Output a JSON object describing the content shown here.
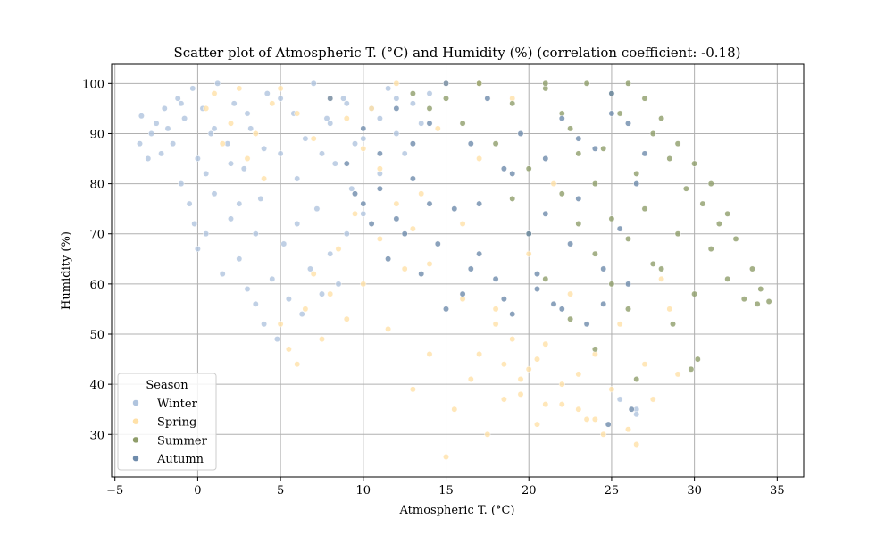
{
  "chart_data": {
    "type": "scatter",
    "title": "Scatter plot of Atmospheric T. (°C) and Humidity (%) (correlation coefficient: -0.18)",
    "xlabel": "Atmospheric T. (°C)",
    "ylabel": "Humidity (%)",
    "xlim": [
      -5.2,
      36.6
    ],
    "ylim": [
      21.5,
      103.8
    ],
    "xticks": [
      -5,
      0,
      5,
      10,
      15,
      20,
      25,
      30,
      35
    ],
    "xtick_labels": [
      "−5",
      "0",
      "5",
      "10",
      "15",
      "20",
      "25",
      "30",
      "35"
    ],
    "yticks": [
      30,
      40,
      50,
      60,
      70,
      80,
      90,
      100
    ],
    "ytick_labels": [
      "30",
      "40",
      "50",
      "60",
      "70",
      "80",
      "90",
      "100"
    ],
    "grid": true,
    "legend": {
      "title": "Season",
      "placement": "lower-left",
      "entries": [
        "Winter",
        "Spring",
        "Summer",
        "Autumn"
      ]
    },
    "series": [
      {
        "name": "Winter",
        "color": "#b0c4de",
        "points": [
          [
            -3.5,
            88
          ],
          [
            -3.4,
            93.5
          ],
          [
            -3.0,
            85
          ],
          [
            -2.8,
            90
          ],
          [
            -2.5,
            92
          ],
          [
            -2.2,
            86
          ],
          [
            -2.0,
            95
          ],
          [
            -1.8,
            91
          ],
          [
            -1.5,
            88
          ],
          [
            -1.2,
            97
          ],
          [
            -1.0,
            80
          ],
          [
            -0.8,
            93
          ],
          [
            -0.5,
            76
          ],
          [
            -0.3,
            99
          ],
          [
            -0.2,
            72
          ],
          [
            0.0,
            85
          ],
          [
            0.0,
            67
          ],
          [
            0.3,
            95
          ],
          [
            0.5,
            70
          ],
          [
            0.8,
            90
          ],
          [
            1.0,
            78
          ],
          [
            1.2,
            100
          ],
          [
            1.5,
            62
          ],
          [
            1.8,
            88
          ],
          [
            2.0,
            73
          ],
          [
            2.2,
            96
          ],
          [
            2.5,
            65
          ],
          [
            2.8,
            83
          ],
          [
            3.0,
            59
          ],
          [
            3.2,
            91
          ],
          [
            3.5,
            56
          ],
          [
            3.8,
            77
          ],
          [
            4.0,
            52
          ],
          [
            4.2,
            98
          ],
          [
            4.5,
            61
          ],
          [
            4.8,
            49
          ],
          [
            5.0,
            86
          ],
          [
            5.2,
            68
          ],
          [
            5.5,
            57
          ],
          [
            5.8,
            94
          ],
          [
            6.0,
            72
          ],
          [
            6.3,
            54
          ],
          [
            6.5,
            89
          ],
          [
            6.8,
            63
          ],
          [
            7.0,
            100
          ],
          [
            7.2,
            75
          ],
          [
            7.5,
            58
          ],
          [
            7.8,
            93
          ],
          [
            8.0,
            66
          ],
          [
            8.3,
            84
          ],
          [
            8.5,
            60
          ],
          [
            8.8,
            97
          ],
          [
            9.0,
            70
          ],
          [
            9.3,
            79
          ],
          [
            9.5,
            88
          ],
          [
            10.0,
            74
          ],
          [
            10.5,
            95
          ],
          [
            11.0,
            82
          ],
          [
            11.5,
            99
          ],
          [
            12.0,
            90
          ],
          [
            12.5,
            86
          ],
          [
            13.0,
            96
          ],
          [
            13.5,
            92
          ],
          [
            14.0,
            98
          ],
          [
            2.0,
            84
          ],
          [
            1.0,
            91
          ],
          [
            0.5,
            82
          ],
          [
            -1.0,
            96
          ],
          [
            3.0,
            94
          ],
          [
            4.0,
            87
          ],
          [
            5.0,
            97
          ],
          [
            6.0,
            81
          ],
          [
            3.5,
            70
          ],
          [
            2.5,
            76
          ],
          [
            26.5,
            35
          ],
          [
            26.5,
            34
          ],
          [
            25.5,
            37
          ],
          [
            7.5,
            86
          ],
          [
            8.0,
            92
          ],
          [
            9.0,
            96
          ],
          [
            10.0,
            89
          ],
          [
            11.0,
            93
          ],
          [
            12.0,
            97
          ]
        ]
      },
      {
        "name": "Spring",
        "color": "#ffe1a8",
        "points": [
          [
            0.5,
            95
          ],
          [
            1.0,
            98
          ],
          [
            1.5,
            88
          ],
          [
            2.0,
            92
          ],
          [
            2.5,
            99
          ],
          [
            3.0,
            85
          ],
          [
            3.5,
            90
          ],
          [
            4.0,
            81
          ],
          [
            4.5,
            96
          ],
          [
            5.0,
            52
          ],
          [
            5.5,
            47
          ],
          [
            6.0,
            44
          ],
          [
            6.5,
            55
          ],
          [
            7.0,
            62
          ],
          [
            7.5,
            49
          ],
          [
            8.0,
            58
          ],
          [
            8.5,
            67
          ],
          [
            9.0,
            53
          ],
          [
            9.5,
            74
          ],
          [
            10.0,
            60
          ],
          [
            10.5,
            95
          ],
          [
            11.0,
            69
          ],
          [
            11.5,
            51
          ],
          [
            12.0,
            100
          ],
          [
            12.5,
            63
          ],
          [
            13.0,
            39
          ],
          [
            13.5,
            78
          ],
          [
            14.0,
            46
          ],
          [
            14.5,
            91
          ],
          [
            15.0,
            25.5
          ],
          [
            15.5,
            35
          ],
          [
            16.0,
            72
          ],
          [
            16.5,
            41
          ],
          [
            17.0,
            85
          ],
          [
            17.5,
            30
          ],
          [
            18.0,
            55
          ],
          [
            18.5,
            44
          ],
          [
            19.0,
            97
          ],
          [
            19.5,
            38
          ],
          [
            20.0,
            66
          ],
          [
            20.5,
            32
          ],
          [
            21.0,
            48
          ],
          [
            21.5,
            80
          ],
          [
            22.0,
            36
          ],
          [
            22.5,
            58
          ],
          [
            23.0,
            42
          ],
          [
            23.5,
            33
          ],
          [
            24.0,
            46
          ],
          [
            24.5,
            30
          ],
          [
            25.0,
            39
          ],
          [
            25.5,
            52
          ],
          [
            26.0,
            31
          ],
          [
            26.5,
            28
          ],
          [
            27.0,
            44
          ],
          [
            27.5,
            37
          ],
          [
            28.0,
            61
          ],
          [
            28.5,
            55
          ],
          [
            29.0,
            42
          ],
          [
            19.0,
            49
          ],
          [
            20.0,
            43
          ],
          [
            21.0,
            36
          ],
          [
            22.0,
            40
          ],
          [
            17.0,
            46
          ],
          [
            18.0,
            52
          ],
          [
            16.0,
            57
          ],
          [
            14.0,
            64
          ],
          [
            13.0,
            71
          ],
          [
            12.0,
            76
          ],
          [
            11.0,
            83
          ],
          [
            10.0,
            87
          ],
          [
            9.0,
            93
          ],
          [
            8.0,
            97
          ],
          [
            7.0,
            89
          ],
          [
            6.0,
            94
          ],
          [
            5.0,
            99
          ],
          [
            15.0,
            100
          ],
          [
            17.0,
            100
          ],
          [
            24.0,
            33
          ],
          [
            23.0,
            35
          ],
          [
            20.5,
            45
          ],
          [
            19.5,
            41
          ],
          [
            18.5,
            37
          ]
        ]
      },
      {
        "name": "Summer",
        "color": "#8f9d6a",
        "points": [
          [
            13.0,
            98
          ],
          [
            14.0,
            95
          ],
          [
            15.0,
            97
          ],
          [
            16.0,
            92
          ],
          [
            17.0,
            100
          ],
          [
            18.0,
            88
          ],
          [
            19.0,
            96
          ],
          [
            20.0,
            83
          ],
          [
            21.0,
            99
          ],
          [
            22.0,
            78
          ],
          [
            22.5,
            91
          ],
          [
            23.0,
            72
          ],
          [
            23.5,
            100
          ],
          [
            24.0,
            66
          ],
          [
            24.5,
            87
          ],
          [
            25.0,
            60
          ],
          [
            25.5,
            94
          ],
          [
            26.0,
            55
          ],
          [
            26.5,
            82
          ],
          [
            27.0,
            75
          ],
          [
            27.5,
            90
          ],
          [
            28.0,
            63
          ],
          [
            28.5,
            85
          ],
          [
            29.0,
            70
          ],
          [
            29.5,
            79
          ],
          [
            30.0,
            58
          ],
          [
            30.5,
            76
          ],
          [
            31.0,
            67
          ],
          [
            31.5,
            72
          ],
          [
            32.0,
            61
          ],
          [
            32.5,
            69
          ],
          [
            33.0,
            57
          ],
          [
            33.5,
            63
          ],
          [
            34.0,
            59
          ],
          [
            34.5,
            56.5
          ],
          [
            33.8,
            56
          ],
          [
            26.5,
            41
          ],
          [
            24.0,
            47
          ],
          [
            22.5,
            53
          ],
          [
            21.0,
            61
          ],
          [
            20.0,
            70
          ],
          [
            19.0,
            77
          ],
          [
            27.0,
            97
          ],
          [
            26.0,
            100
          ],
          [
            25.0,
            98
          ],
          [
            28.0,
            93
          ],
          [
            29.0,
            88
          ],
          [
            30.0,
            84
          ],
          [
            31.0,
            80
          ],
          [
            32.0,
            74
          ],
          [
            30.2,
            45
          ],
          [
            29.8,
            43
          ],
          [
            28.7,
            52
          ],
          [
            27.5,
            64
          ],
          [
            26.0,
            69
          ],
          [
            25.0,
            73
          ],
          [
            24.0,
            80
          ],
          [
            23.0,
            86
          ],
          [
            22.0,
            94
          ],
          [
            21.0,
            100
          ]
        ]
      },
      {
        "name": "Autumn",
        "color": "#6e8bab",
        "points": [
          [
            8.0,
            97
          ],
          [
            9.0,
            84
          ],
          [
            9.5,
            78
          ],
          [
            10.0,
            91
          ],
          [
            10.5,
            72
          ],
          [
            11.0,
            86
          ],
          [
            11.5,
            65
          ],
          [
            12.0,
            95
          ],
          [
            12.5,
            70
          ],
          [
            13.0,
            81
          ],
          [
            13.5,
            62
          ],
          [
            14.0,
            92
          ],
          [
            14.5,
            68
          ],
          [
            15.0,
            100
          ],
          [
            15.5,
            75
          ],
          [
            16.0,
            58
          ],
          [
            16.5,
            88
          ],
          [
            17.0,
            66
          ],
          [
            17.5,
            97
          ],
          [
            18.0,
            61
          ],
          [
            18.5,
            83
          ],
          [
            19.0,
            54
          ],
          [
            19.5,
            90
          ],
          [
            20.0,
            70
          ],
          [
            20.5,
            62
          ],
          [
            21.0,
            85
          ],
          [
            21.5,
            56
          ],
          [
            22.0,
            93
          ],
          [
            22.5,
            68
          ],
          [
            23.0,
            77
          ],
          [
            23.5,
            52
          ],
          [
            24.0,
            87
          ],
          [
            24.5,
            63
          ],
          [
            25.0,
            98
          ],
          [
            25.5,
            71
          ],
          [
            26.0,
            92
          ],
          [
            26.5,
            80
          ],
          [
            27.0,
            86
          ],
          [
            15.0,
            55
          ],
          [
            16.5,
            63
          ],
          [
            18.5,
            57
          ],
          [
            20.5,
            59
          ],
          [
            22.0,
            55
          ],
          [
            24.5,
            56
          ],
          [
            26.0,
            60
          ],
          [
            17.0,
            76
          ],
          [
            19.0,
            82
          ],
          [
            21.0,
            74
          ],
          [
            23.0,
            89
          ],
          [
            25.0,
            94
          ],
          [
            13.0,
            88
          ],
          [
            11.0,
            79
          ],
          [
            10.0,
            76
          ],
          [
            12.0,
            73
          ],
          [
            14.0,
            76
          ],
          [
            26.2,
            35
          ],
          [
            24.8,
            32
          ]
        ]
      }
    ]
  }
}
